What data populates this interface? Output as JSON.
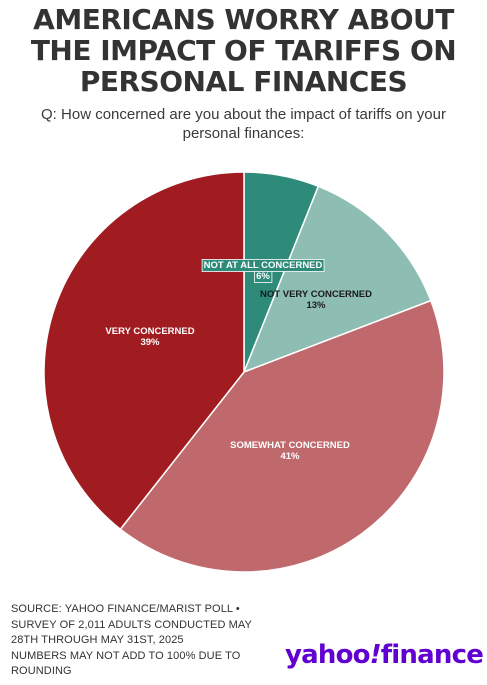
{
  "title_lines": [
    "AMERICANS WORRY ABOUT",
    "THE IMPACT OF TARIFFS ON",
    "PERSONAL FINANCES"
  ],
  "question_lines": [
    "Q: How concerned are you about the impact of tariffs on your",
    "personal finances:"
  ],
  "chart_data": {
    "type": "pie",
    "start": "12 o'clock, clockwise",
    "slices": [
      {
        "label": "NOT AT ALL CONCERNED",
        "value": 6,
        "value_label": "6%",
        "color": "#2e8b7a",
        "label_color": "#ffffff",
        "highlight_label": true
      },
      {
        "label": "NOT VERY CONCERNED",
        "value": 13,
        "value_label": "13%",
        "color": "#8dbdb3",
        "label_color": "#1a1a1a",
        "highlight_label": false
      },
      {
        "label": "SOMEWHAT CONCERNED",
        "value": 41,
        "value_label": "41%",
        "color": "#c0696d",
        "label_color": "#ffffff",
        "highlight_label": false
      },
      {
        "label": "VERY CONCERNED",
        "value": 39,
        "value_label": "39%",
        "color": "#a11c20",
        "label_color": "#ffffff",
        "highlight_label": false
      }
    ]
  },
  "source_lines": [
    "SOURCE: YAHOO FINANCE/MARIST POLL •",
    "SURVEY OF 2,011 ADULTS CONDUCTED MAY",
    "28TH THROUGH MAY 31ST, 2025",
    "NUMBERS MAY NOT ADD TO 100% DUE TO",
    "ROUNDING"
  ],
  "logo": {
    "part1": "yahoo",
    "part2": "!",
    "part3": "finance",
    "color": "#6001d2"
  }
}
